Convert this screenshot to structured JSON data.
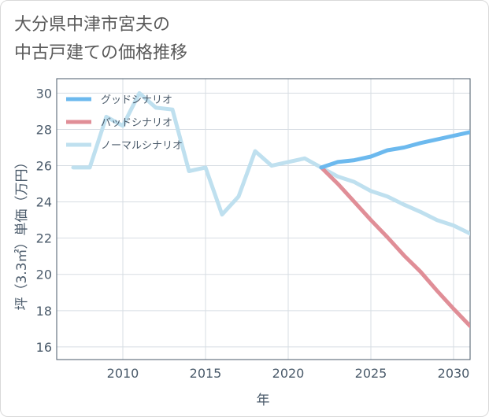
{
  "title_lines": [
    "大分県中津市宮夫の",
    "中古戸建ての価格推移"
  ],
  "chart_data": {
    "type": "line",
    "xlabel": "年",
    "ylabel": "坪（3.3㎡）単価（万円）",
    "xlim": [
      2006,
      2031
    ],
    "ylim": [
      15.3,
      30.8
    ],
    "xticks": [
      2010,
      2015,
      2020,
      2025,
      2030
    ],
    "yticks": [
      16,
      18,
      20,
      22,
      24,
      26,
      28,
      30
    ],
    "grid": true,
    "legend_position": "top-left",
    "series": [
      {
        "name": "グッドシナリオ",
        "color": "#6cb9ee",
        "x": [
          2022,
          2023,
          2024,
          2025,
          2026,
          2027,
          2028,
          2029,
          2030,
          2031
        ],
        "y": [
          25.9,
          26.2,
          26.3,
          26.5,
          26.85,
          27.0,
          27.25,
          27.45,
          27.65,
          27.85
        ]
      },
      {
        "name": "バッドシナリオ",
        "color": "#e08e97",
        "x": [
          2022,
          2023,
          2024,
          2025,
          2026,
          2027,
          2028,
          2029,
          2030,
          2031
        ],
        "y": [
          25.9,
          25.0,
          24.0,
          23.0,
          22.05,
          21.05,
          20.15,
          19.1,
          18.1,
          17.15
        ]
      },
      {
        "name": "ノーマルシナリオ",
        "color": "#bfe0ef",
        "x": [
          2007,
          2008,
          2009,
          2010,
          2011,
          2012,
          2013,
          2014,
          2015,
          2016,
          2017,
          2018,
          2019,
          2020,
          2021,
          2022,
          2023,
          2024,
          2025,
          2026,
          2027,
          2028,
          2029,
          2030,
          2031
        ],
        "y": [
          25.9,
          25.9,
          28.7,
          28.2,
          30.0,
          29.2,
          29.1,
          25.7,
          25.9,
          23.3,
          24.3,
          26.8,
          26.0,
          26.2,
          26.4,
          25.9,
          25.4,
          25.1,
          24.6,
          24.3,
          23.85,
          23.45,
          23.0,
          22.7,
          22.25
        ]
      }
    ]
  }
}
